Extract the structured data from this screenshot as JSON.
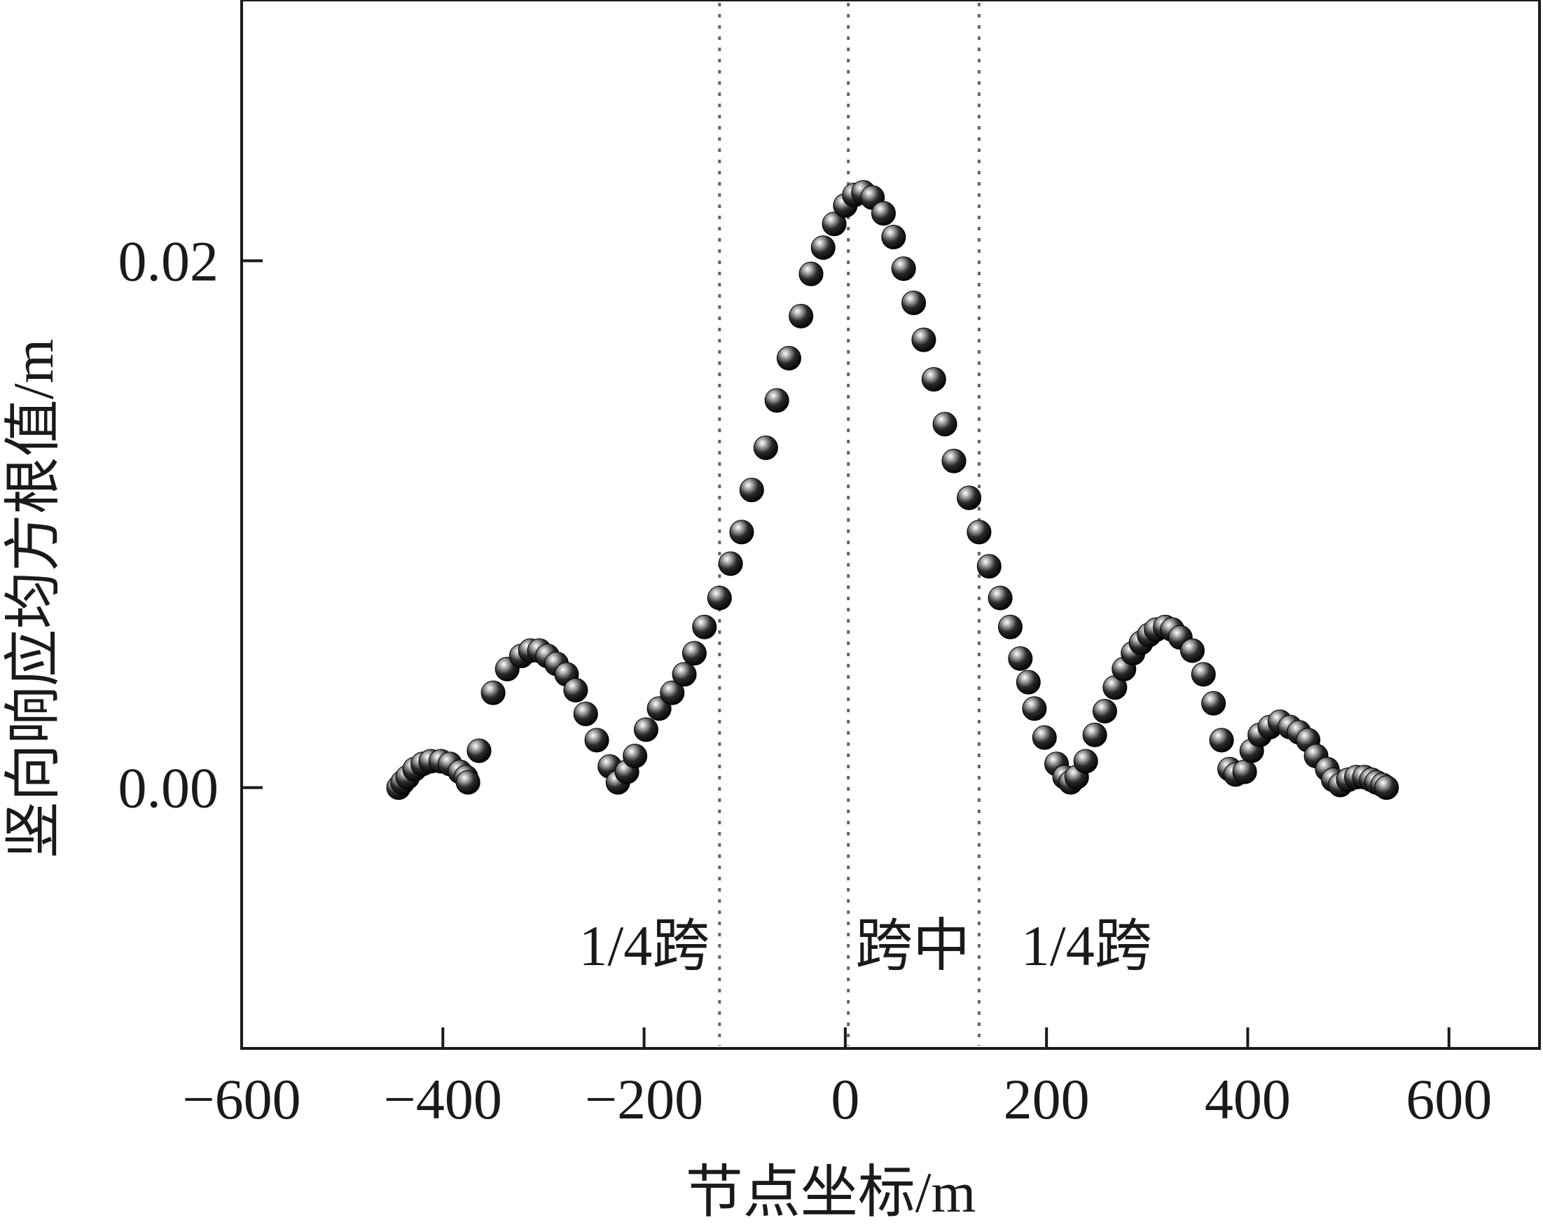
{
  "chart_data": {
    "type": "scatter",
    "xlabel": "节点坐标/m",
    "ylabel": "竖向响应均方根值/m",
    "xlim": [
      -600,
      690
    ],
    "ylim": [
      -0.0099,
      0.0299
    ],
    "x_ticks": [
      -600,
      -400,
      -200,
      0,
      200,
      400,
      600
    ],
    "x_tick_labels": [
      "−600",
      "−400",
      "−200",
      "0",
      "200",
      "400",
      "600"
    ],
    "y_ticks": [
      0.0,
      0.02
    ],
    "y_tick_labels": [
      "0.00",
      "0.02"
    ],
    "grid": false,
    "reference_lines": [
      {
        "x": -125,
        "style": "dotted",
        "label": "1/4跨"
      },
      {
        "x": 3,
        "style": "dotted",
        "label": "跨中"
      },
      {
        "x": 133,
        "style": "dotted",
        "label": "1/4跨"
      }
    ],
    "points": [
      [
        -444,
        0.0
      ],
      [
        -440,
        0.0002
      ],
      [
        -435,
        0.0004
      ],
      [
        -428,
        0.0007
      ],
      [
        -420,
        0.0009
      ],
      [
        -412,
        0.001
      ],
      [
        -402,
        0.001
      ],
      [
        -393,
        0.0009
      ],
      [
        -383,
        0.0006
      ],
      [
        -377,
        0.0004
      ],
      [
        -375,
        0.0002
      ],
      [
        -364,
        0.0014
      ],
      [
        -350,
        0.0036
      ],
      [
        -336,
        0.0045
      ],
      [
        -322,
        0.005
      ],
      [
        -313,
        0.0052
      ],
      [
        -304,
        0.0052
      ],
      [
        -296,
        0.005
      ],
      [
        -287,
        0.0047
      ],
      [
        -277,
        0.0043
      ],
      [
        -268,
        0.0037
      ],
      [
        -258,
        0.0028
      ],
      [
        -247,
        0.0018
      ],
      [
        -234,
        0.0008
      ],
      [
        -226,
        0.0002
      ],
      [
        -217,
        0.0006
      ],
      [
        -209,
        0.0012
      ],
      [
        -198,
        0.0022
      ],
      [
        -185,
        0.003
      ],
      [
        -172,
        0.0036
      ],
      [
        -160,
        0.0043
      ],
      [
        -150,
        0.0051
      ],
      [
        -140,
        0.0061
      ],
      [
        -125,
        0.0072
      ],
      [
        -114,
        0.0085
      ],
      [
        -103,
        0.0097
      ],
      [
        -93,
        0.0113
      ],
      [
        -79,
        0.0129
      ],
      [
        -68,
        0.0147
      ],
      [
        -56,
        0.0163
      ],
      [
        -44,
        0.0179
      ],
      [
        -34,
        0.0195
      ],
      [
        -22,
        0.0205
      ],
      [
        -11,
        0.0214
      ],
      [
        0,
        0.0221
      ],
      [
        9,
        0.0225
      ],
      [
        18,
        0.0226
      ],
      [
        27,
        0.0224
      ],
      [
        38,
        0.0218
      ],
      [
        48,
        0.0209
      ],
      [
        58,
        0.0197
      ],
      [
        68,
        0.0184
      ],
      [
        78,
        0.017
      ],
      [
        88,
        0.0155
      ],
      [
        99,
        0.0138
      ],
      [
        108,
        0.0124
      ],
      [
        123,
        0.011
      ],
      [
        133,
        0.0097
      ],
      [
        143,
        0.0084
      ],
      [
        154,
        0.0072
      ],
      [
        164,
        0.0061
      ],
      [
        174,
        0.0049
      ],
      [
        182,
        0.004
      ],
      [
        188,
        0.003
      ],
      [
        198,
        0.0019
      ],
      [
        210,
        0.0009
      ],
      [
        218,
        0.0004
      ],
      [
        224,
        0.0002
      ],
      [
        230,
        0.0004
      ],
      [
        239,
        0.001
      ],
      [
        248,
        0.002
      ],
      [
        258,
        0.0029
      ],
      [
        268,
        0.0038
      ],
      [
        277,
        0.0045
      ],
      [
        286,
        0.0051
      ],
      [
        294,
        0.0055
      ],
      [
        302,
        0.0058
      ],
      [
        309,
        0.006
      ],
      [
        318,
        0.0061
      ],
      [
        325,
        0.006
      ],
      [
        333,
        0.0057
      ],
      [
        345,
        0.0052
      ],
      [
        356,
        0.0043
      ],
      [
        366,
        0.0032
      ],
      [
        374,
        0.0018
      ],
      [
        382,
        0.0007
      ],
      [
        388,
        0.0005
      ],
      [
        397,
        0.0006
      ],
      [
        404,
        0.0014
      ],
      [
        412,
        0.002
      ],
      [
        422,
        0.0023
      ],
      [
        432,
        0.0025
      ],
      [
        442,
        0.0023
      ],
      [
        451,
        0.0021
      ],
      [
        460,
        0.0018
      ],
      [
        468,
        0.0012
      ],
      [
        479,
        0.0007
      ],
      [
        485,
        0.0003
      ],
      [
        492,
        0.0001
      ],
      [
        500,
        0.0003
      ],
      [
        508,
        0.0004
      ],
      [
        516,
        0.0004
      ],
      [
        523,
        0.0003
      ],
      [
        528,
        0.0002
      ],
      [
        534,
        0.0001
      ],
      [
        538,
        0.0
      ]
    ]
  }
}
